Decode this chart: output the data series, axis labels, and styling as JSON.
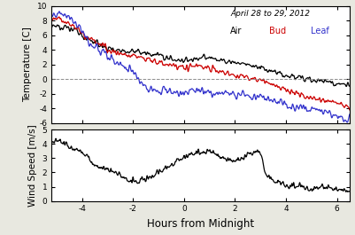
{
  "title": "April 28 to 29, 2012",
  "legend_labels": [
    "Air",
    "Bud",
    "Leaf"
  ],
  "legend_colors": [
    "black",
    "#cc0000",
    "#3333cc"
  ],
  "temp_ylim": [
    -6,
    10
  ],
  "temp_yticks": [
    -6,
    -4,
    -2,
    0,
    2,
    4,
    6,
    8,
    10
  ],
  "wind_ylim": [
    0,
    5
  ],
  "wind_yticks": [
    0,
    1,
    2,
    3,
    4,
    5
  ],
  "xlim": [
    -5.2,
    6.5
  ],
  "xticks": [
    -4,
    -2,
    0,
    2,
    4,
    6
  ],
  "xlabel": "Hours from Midnight",
  "temp_ylabel": "Temperature [C]",
  "wind_ylabel": "Wind Speed [m/s]",
  "background": "#e8e8e0",
  "plot_background": "white"
}
